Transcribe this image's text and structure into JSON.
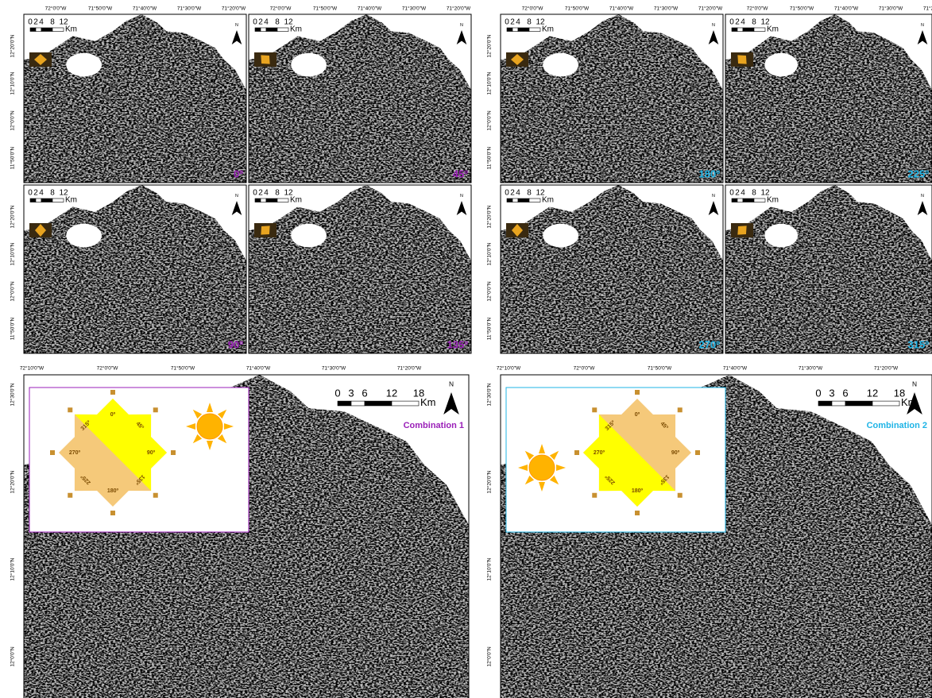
{
  "panels": [
    {
      "label": "0º",
      "color": "#9a1fb8"
    },
    {
      "label": "45º",
      "color": "#9a1fb8"
    },
    {
      "label": "90º",
      "color": "#9a1fb8"
    },
    {
      "label": "135º",
      "color": "#9a1fb8"
    },
    {
      "label": "180º",
      "color": "#1fb4e6"
    },
    {
      "label": "225º",
      "color": "#1fb4e6"
    },
    {
      "label": "270º",
      "color": "#1fb4e6"
    },
    {
      "label": "315º",
      "color": "#1fb4e6"
    }
  ],
  "small_map": {
    "lon_labels": [
      "72°0'0\"W",
      "71°50'0\"W",
      "71°40'0\"W",
      "71°30'0\"W",
      "71°20'0\"W"
    ],
    "lat_labels": [
      "12°20'0\"N",
      "12°10'0\"N",
      "12°0'0\"N",
      "11°50'0\"N"
    ],
    "scale_labels": [
      "0",
      "2",
      "4",
      "8",
      "12"
    ],
    "scale_unit": "Km",
    "north": "N"
  },
  "large_map": {
    "lon_labels": [
      "72°10'0\"W",
      "72°0'0\"W",
      "71°50'0\"W",
      "71°40'0\"W",
      "71°30'0\"W",
      "71°20'0\"W"
    ],
    "lat_labels": [
      "12°30'0\"N",
      "12°20'0\"N",
      "12°10'0\"N",
      "12°0'0\"N"
    ],
    "scale_labels": [
      "0",
      "3",
      "6",
      "12",
      "18"
    ],
    "scale_unit": "Km",
    "north": "N"
  },
  "combinations": [
    {
      "title": "Combination 1",
      "color": "#9a1fb8",
      "star_labels": [
        "0º",
        "45º",
        "90º",
        "135º",
        "180º",
        "225º",
        "270º",
        "315º"
      ]
    },
    {
      "title": "Combination 2",
      "color": "#1fb4e6",
      "star_labels": [
        "0º",
        "45º",
        "90º",
        "135º",
        "180º",
        "225º",
        "270º",
        "315º"
      ]
    }
  ]
}
